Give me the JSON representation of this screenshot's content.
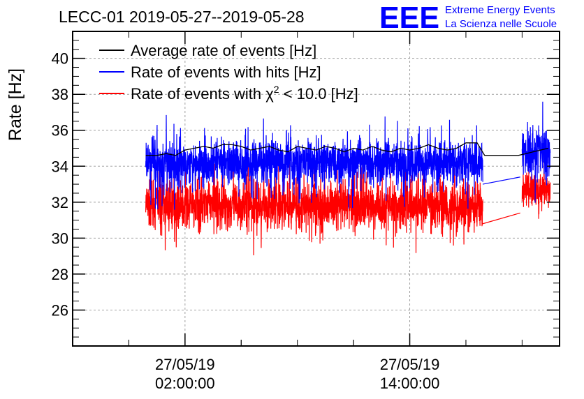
{
  "chart_data": {
    "type": "line",
    "title": "LECC-01 2019-05-27--2019-05-28",
    "ylabel": "Rate [Hz]",
    "xlabel": "",
    "ylim": [
      24,
      41.5
    ],
    "yticks": [
      26,
      28,
      30,
      32,
      34,
      36,
      38,
      40
    ],
    "xlim_hours": [
      -4.0,
      22.0
    ],
    "x_tick_labels": [
      {
        "date": "27/05/19",
        "time": "02:00:00"
      },
      {
        "date": "27/05/19",
        "time": "14:00:00"
      }
    ],
    "x_tick_hours": [
      2,
      14
    ],
    "grid": true,
    "legend_position": "top-left",
    "legend": [
      {
        "label": "Average rate of events [Hz]",
        "color": "#000000"
      },
      {
        "label": "Rate of events with hits [Hz]",
        "color": "#0000ff"
      },
      {
        "label_prefix": "Rate of events with ",
        "label_chi": "χ",
        "label_sup": "2",
        "label_suffix": " < 10.0 [Hz]",
        "color": "#ff0000"
      }
    ],
    "series": [
      {
        "name": "Average rate of events [Hz]",
        "color": "#000000",
        "x": [
          -0.1,
          0.5,
          1.0,
          1.5,
          2.0,
          2.5,
          3.0,
          3.5,
          4.0,
          4.5,
          5.0,
          5.5,
          6.0,
          6.5,
          7.0,
          7.5,
          8.0,
          8.5,
          9.0,
          9.5,
          10.0,
          10.5,
          11.0,
          11.5,
          12.0,
          12.5,
          13.0,
          13.5,
          14.0,
          14.5,
          15.0,
          15.5,
          16.0,
          16.5,
          17.0,
          17.6,
          18.0,
          19.8,
          20.2,
          21.4
        ],
        "y": [
          34.6,
          34.6,
          34.7,
          34.6,
          34.9,
          35.0,
          35.1,
          35.0,
          35.2,
          35.2,
          35.1,
          34.9,
          35.0,
          35.1,
          34.9,
          34.8,
          35.1,
          35.0,
          34.9,
          35.1,
          35.0,
          34.8,
          35.0,
          34.9,
          35.1,
          34.9,
          34.8,
          35.0,
          34.9,
          35.0,
          35.2,
          35.0,
          34.9,
          35.0,
          35.3,
          35.3,
          34.6,
          34.6,
          34.7,
          35.0
        ]
      },
      {
        "name": "Rate of events with hits [Hz]",
        "color": "#0000ff",
        "segments": [
          {
            "x_start": -0.1,
            "x_end": 17.9,
            "mean": 34.2,
            "amplitude": 1.3
          },
          {
            "x_start": 20.0,
            "x_end": 21.5,
            "mean": 34.8,
            "amplitude": 1.5
          }
        ],
        "gap_line": {
          "x": [
            17.9,
            19.9
          ],
          "y": [
            33.0,
            33.4
          ]
        }
      },
      {
        "name": "Rate of events with χ2 < 10.0 [Hz]",
        "color": "#ff0000",
        "segments": [
          {
            "x_start": -0.1,
            "x_end": 17.9,
            "mean": 31.8,
            "amplitude": 1.4
          },
          {
            "x_start": 20.0,
            "x_end": 21.5,
            "mean": 32.7,
            "amplitude": 1.0
          }
        ],
        "gap_line": {
          "x": [
            17.9,
            19.9
          ],
          "y": [
            30.8,
            31.4
          ]
        }
      }
    ]
  },
  "logo": {
    "mark": "EEE",
    "line1": "Extreme Energy Events",
    "line2": "La Scienza nelle Scuole",
    "color": "#0000ff"
  }
}
